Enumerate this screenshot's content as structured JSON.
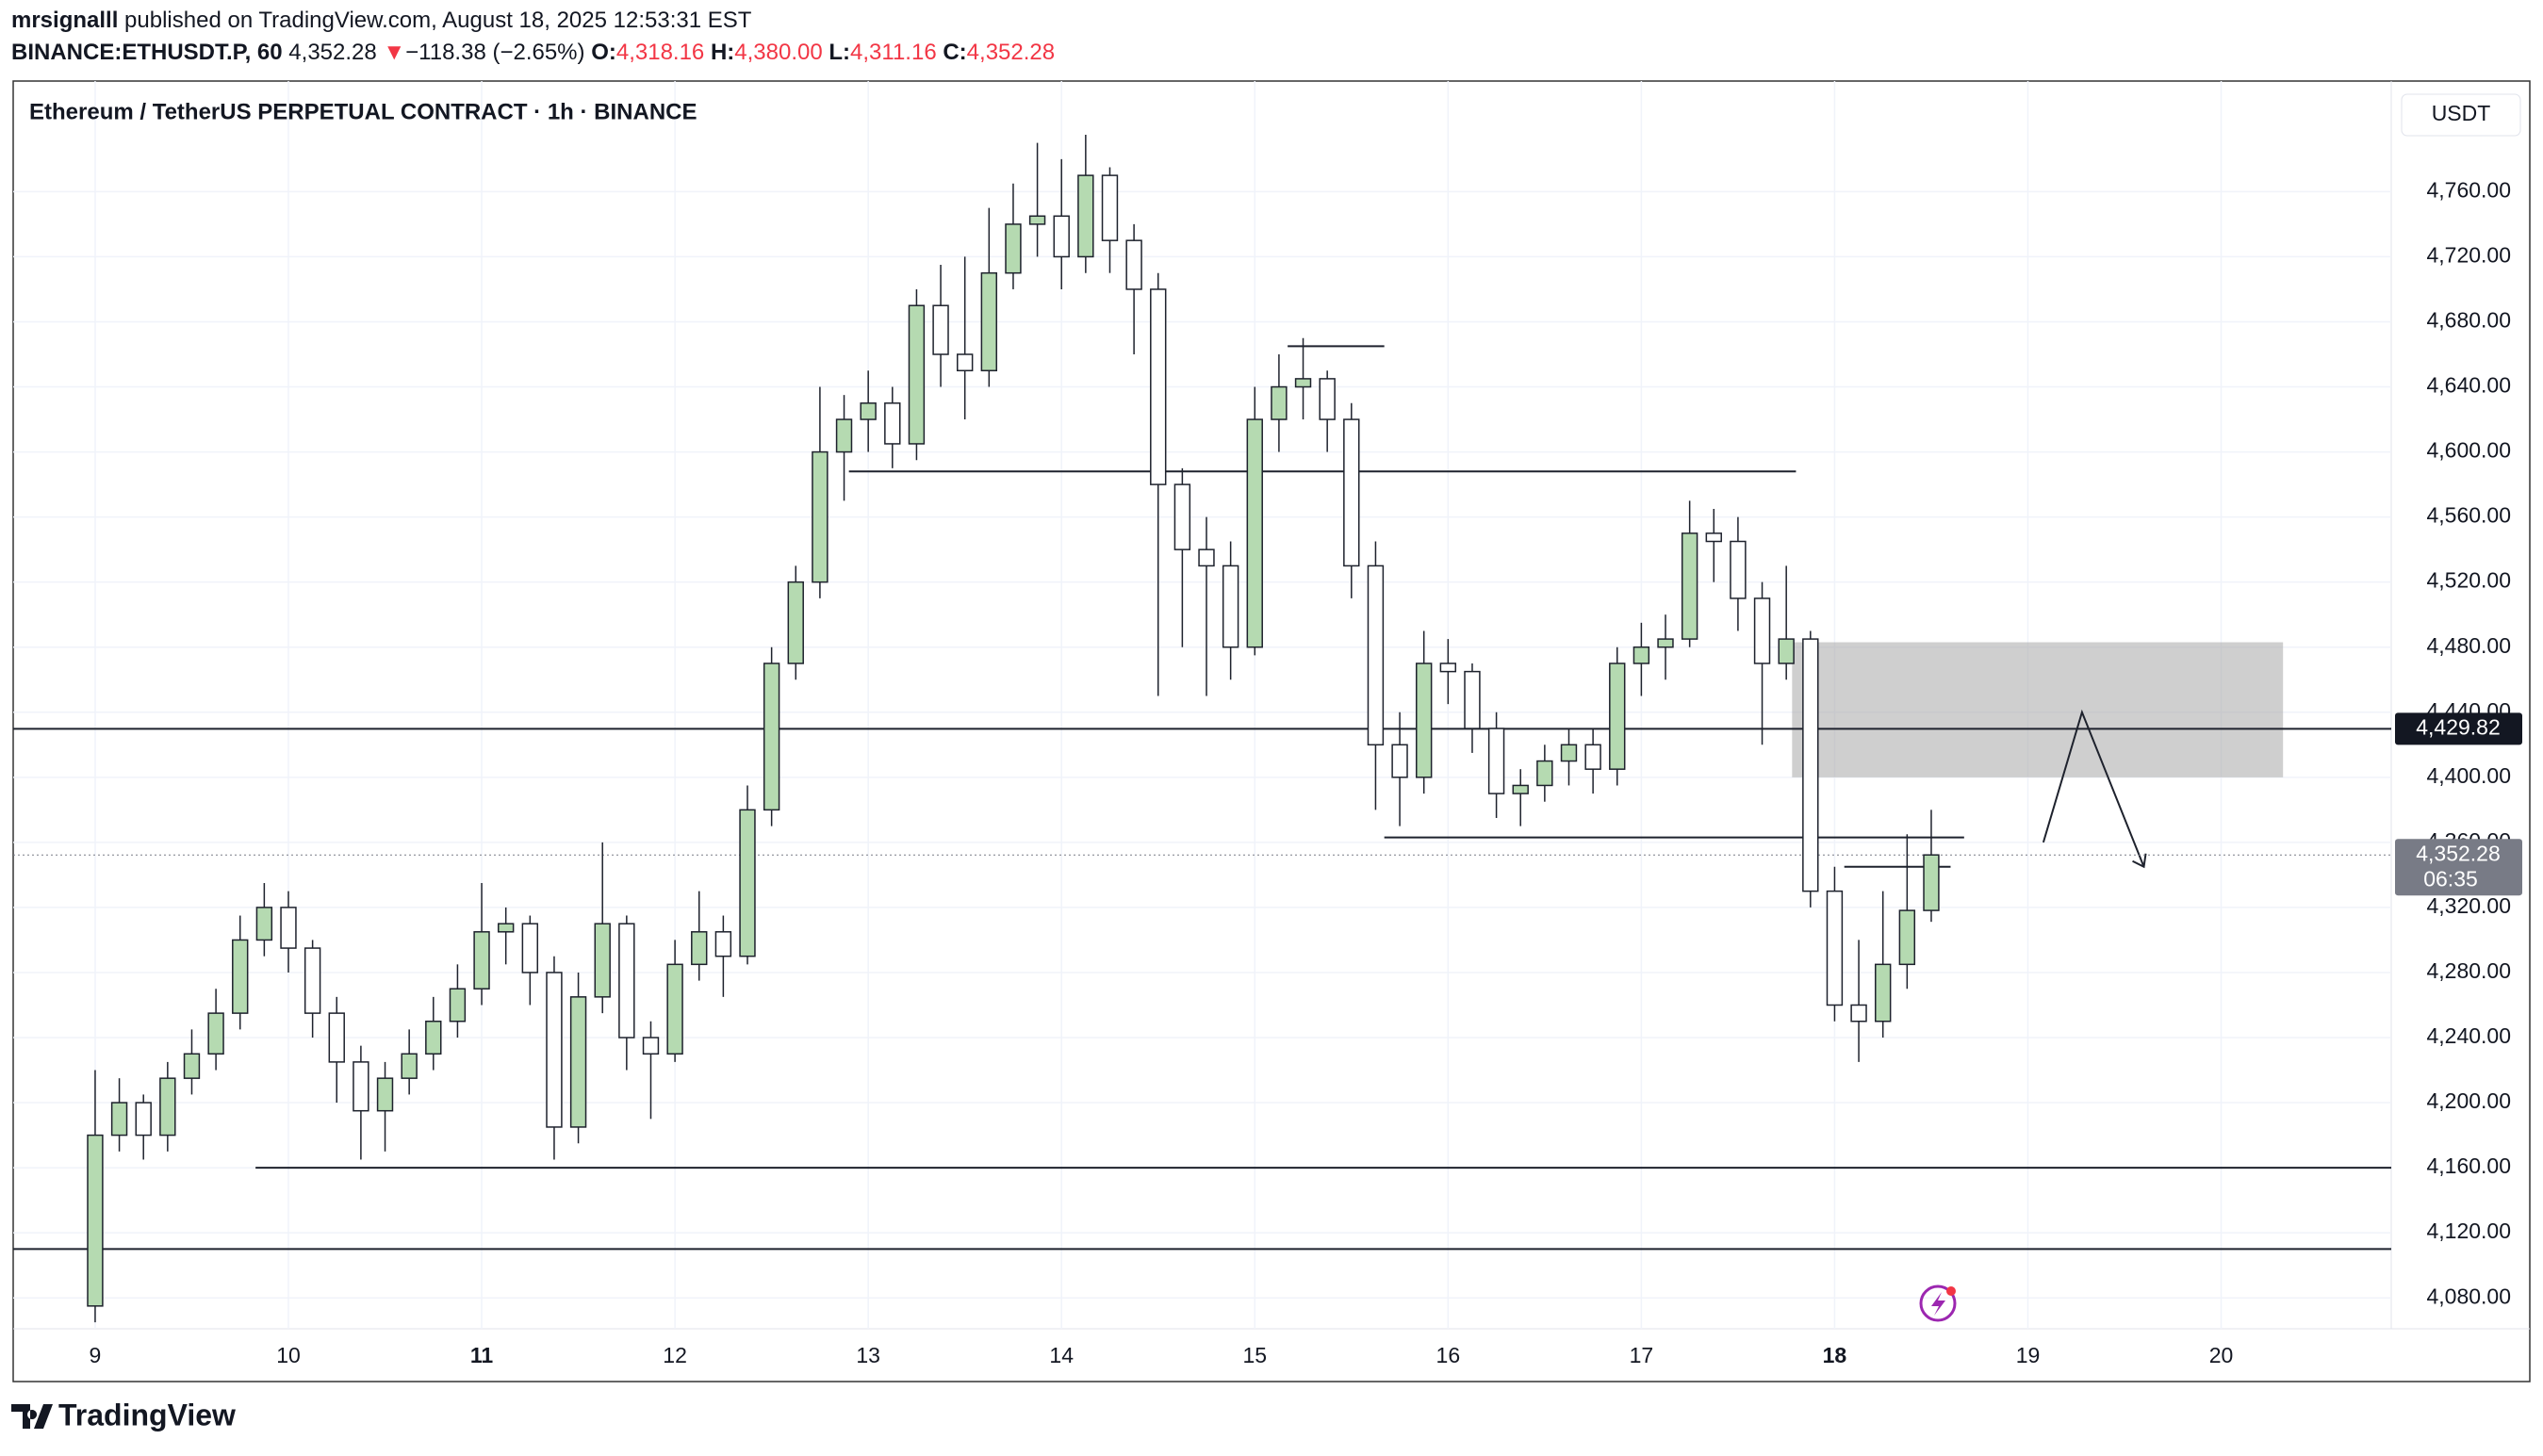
{
  "header": {
    "line1": {
      "user": "mrsignalll",
      "rest": "published on TradingView.com, August 18, 2025 12:53:31 EST"
    },
    "line2": {
      "symbol": "BINANCE:ETHUSDT.P, 60",
      "last": "4,352.28",
      "arrow": "▼",
      "change": "−118.38 (−2.65%)",
      "o_label": "O:",
      "o": "4,318.16",
      "h_label": "H:",
      "h": "4,380.00",
      "l_label": "L:",
      "l": "4,311.16",
      "c_label": "C:",
      "c": "4,352.28"
    }
  },
  "chart_data": {
    "type": "candlestick",
    "title": "Ethereum / TetherUS PERPETUAL CONTRACT · 1h · BINANCE",
    "currency": "USDT",
    "up_color": "#b5dab1",
    "down_color": "#ffffff",
    "outline_color": "#1e222d",
    "grid": true,
    "xlim": [
      8.576,
      20.88
    ],
    "ylim": [
      4061,
      4828
    ],
    "xticks": [
      9,
      10,
      11,
      12,
      13,
      14,
      15,
      16,
      17,
      18,
      19,
      20
    ],
    "bold_xticks": [
      11,
      18
    ],
    "yticks": [
      {
        "value": 4080,
        "label": "4,080.00"
      },
      {
        "value": 4120,
        "label": "4,120.00"
      },
      {
        "value": 4160,
        "label": "4,160.00"
      },
      {
        "value": 4200,
        "label": "4,200.00"
      },
      {
        "value": 4240,
        "label": "4,240.00"
      },
      {
        "value": 4280,
        "label": "4,280.00"
      },
      {
        "value": 4320,
        "label": "4,320.00"
      },
      {
        "value": 4360,
        "label": "4,360.00"
      },
      {
        "value": 4400,
        "label": "4,400.00"
      },
      {
        "value": 4440,
        "label": "4,440.00"
      },
      {
        "value": 4480,
        "label": "4,480.00"
      },
      {
        "value": 4520,
        "label": "4,520.00"
      },
      {
        "value": 4560,
        "label": "4,560.00"
      },
      {
        "value": 4600,
        "label": "4,600.00"
      },
      {
        "value": 4640,
        "label": "4,640.00"
      },
      {
        "value": 4680,
        "label": "4,680.00"
      },
      {
        "value": 4720,
        "label": "4,720.00"
      },
      {
        "value": 4760,
        "label": "4,760.00"
      }
    ],
    "x": [
      9.0,
      9.125,
      9.25,
      9.375,
      9.5,
      9.625,
      9.75,
      9.875,
      10.0,
      10.125,
      10.25,
      10.375,
      10.5,
      10.625,
      10.75,
      10.875,
      11.0,
      11.125,
      11.25,
      11.375,
      11.5,
      11.625,
      11.75,
      11.875,
      12.0,
      12.125,
      12.25,
      12.375,
      12.5,
      12.625,
      12.75,
      12.875,
      13.0,
      13.125,
      13.25,
      13.375,
      13.5,
      13.625,
      13.75,
      13.875,
      14.0,
      14.125,
      14.25,
      14.375,
      14.5,
      14.625,
      14.75,
      14.875,
      15.0,
      15.125,
      15.25,
      15.375,
      15.5,
      15.625,
      15.75,
      15.875,
      16.0,
      16.125,
      16.25,
      16.375,
      16.5,
      16.625,
      16.75,
      16.875,
      17.0,
      17.125,
      17.25,
      17.375,
      17.5,
      17.625,
      17.75,
      17.875,
      18.0,
      18.125,
      18.25,
      18.375,
      18.5
    ],
    "open": [
      4075,
      4180,
      4200,
      4180,
      4215,
      4230,
      4255,
      4300,
      4320,
      4295,
      4255,
      4225,
      4195,
      4215,
      4230,
      4250,
      4270,
      4305,
      4310,
      4280,
      4185,
      4265,
      4310,
      4240,
      4230,
      4285,
      4305,
      4290,
      4380,
      4470,
      4520,
      4600,
      4620,
      4630,
      4605,
      4690,
      4660,
      4650,
      4710,
      4740,
      4745,
      4720,
      4770,
      4730,
      4700,
      4580,
      4540,
      4530,
      4480,
      4620,
      4640,
      4645,
      4620,
      4530,
      4420,
      4400,
      4470,
      4465,
      4430,
      4390,
      4395,
      4410,
      4420,
      4405,
      4470,
      4480,
      4485,
      4550,
      4545,
      4510,
      4470,
      4485,
      4330,
      4260,
      4250,
      4285,
      4318.16
    ],
    "high": [
      4220,
      4215,
      4205,
      4225,
      4245,
      4270,
      4315,
      4335,
      4330,
      4300,
      4265,
      4235,
      4225,
      4245,
      4265,
      4285,
      4335,
      4320,
      4315,
      4290,
      4280,
      4360,
      4315,
      4250,
      4300,
      4330,
      4315,
      4395,
      4480,
      4530,
      4640,
      4635,
      4650,
      4640,
      4700,
      4715,
      4720,
      4750,
      4765,
      4790,
      4780,
      4795,
      4775,
      4740,
      4710,
      4590,
      4560,
      4545,
      4640,
      4660,
      4670,
      4650,
      4630,
      4545,
      4440,
      4490,
      4485,
      4470,
      4440,
      4405,
      4420,
      4430,
      4430,
      4480,
      4495,
      4500,
      4570,
      4565,
      4560,
      4520,
      4530,
      4490,
      4345,
      4300,
      4330,
      4365,
      4380
    ],
    "low": [
      4065,
      4170,
      4165,
      4170,
      4205,
      4220,
      4245,
      4290,
      4280,
      4240,
      4200,
      4165,
      4170,
      4205,
      4220,
      4240,
      4260,
      4285,
      4260,
      4165,
      4175,
      4255,
      4220,
      4190,
      4225,
      4275,
      4265,
      4285,
      4370,
      4460,
      4510,
      4570,
      4600,
      4590,
      4595,
      4640,
      4620,
      4640,
      4700,
      4720,
      4700,
      4710,
      4710,
      4660,
      4450,
      4480,
      4450,
      4460,
      4475,
      4600,
      4620,
      4600,
      4510,
      4380,
      4370,
      4390,
      4445,
      4415,
      4375,
      4370,
      4385,
      4395,
      4390,
      4395,
      4450,
      4460,
      4480,
      4520,
      4490,
      4420,
      4460,
      4320,
      4250,
      4225,
      4240,
      4270,
      4311.16
    ],
    "close": [
      4180,
      4200,
      4180,
      4215,
      4230,
      4255,
      4300,
      4320,
      4295,
      4255,
      4225,
      4195,
      4215,
      4230,
      4250,
      4270,
      4305,
      4310,
      4280,
      4185,
      4265,
      4310,
      4240,
      4230,
      4285,
      4305,
      4290,
      4380,
      4470,
      4520,
      4600,
      4620,
      4630,
      4605,
      4690,
      4660,
      4650,
      4710,
      4740,
      4745,
      4720,
      4770,
      4730,
      4700,
      4580,
      4540,
      4530,
      4480,
      4620,
      4640,
      4645,
      4620,
      4530,
      4420,
      4400,
      4470,
      4465,
      4430,
      4390,
      4395,
      4410,
      4420,
      4405,
      4470,
      4480,
      4485,
      4550,
      4545,
      4510,
      4470,
      4485,
      4330,
      4260,
      4250,
      4285,
      4318.16,
      4352.28
    ],
    "levels": [
      {
        "value": 4429.82,
        "x": [
          8.576,
          20.88
        ]
      },
      {
        "value": 4110,
        "x": [
          8.576,
          20.88
        ]
      },
      {
        "value": 4160,
        "x": [
          9.83,
          20.88
        ]
      },
      {
        "value": 4588,
        "x": [
          12.9,
          17.8
        ]
      },
      {
        "value": 4665,
        "x": [
          15.17,
          15.67
        ]
      },
      {
        "value": 4363,
        "x": [
          15.67,
          18.67
        ]
      },
      {
        "value": 4345,
        "x": [
          18.05,
          18.6
        ]
      }
    ],
    "zone": {
      "x": [
        17.78,
        20.32
      ],
      "y": [
        4400,
        4483
      ]
    },
    "arrow": {
      "x": [
        19.08,
        19.28,
        19.6
      ],
      "y": [
        4360,
        4440,
        4345
      ]
    },
    "price_line": {
      "value": 4429.82,
      "label": "4,429.82"
    },
    "last_price": {
      "value": 4352.28,
      "label": "4,352.28",
      "countdown": "06:35"
    },
    "logo": "TradingView"
  }
}
